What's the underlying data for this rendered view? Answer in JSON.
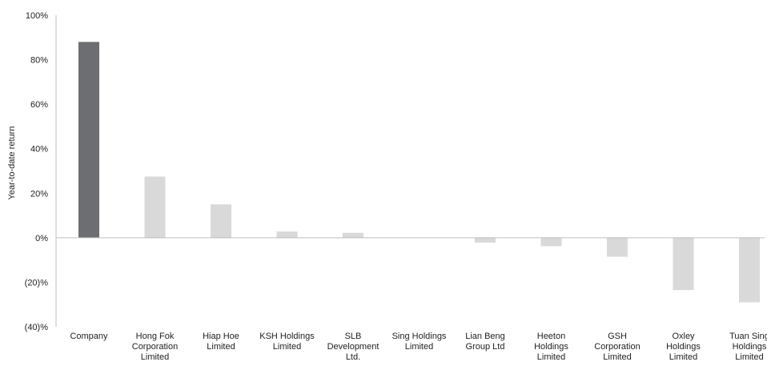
{
  "chart_data": {
    "type": "bar",
    "title": "",
    "xlabel": "",
    "ylabel": "Year-to-date return",
    "ylim": [
      -40,
      100
    ],
    "yticks": [
      100,
      80,
      60,
      40,
      20,
      0,
      -20,
      -40
    ],
    "ytick_labels": [
      "100%",
      "80%",
      "60%",
      "40%",
      "20%",
      "0%",
      "(20)%",
      "(40)%"
    ],
    "grid": false,
    "categories": [
      "Company",
      "Hong Fok Corporation Limited",
      "Hiap Hoe Limited",
      "KSH Holdings Limited",
      "SLB Development Ltd.",
      "Sing Holdings Limited",
      "Lian Beng Group Ltd",
      "Heeton Holdings Limited",
      "GSH Corporation Limited",
      "Oxley Holdings Limited",
      "Tuan Sing Holdings Limited"
    ],
    "category_lines": [
      [
        "Company"
      ],
      [
        "Hong Fok",
        "Corporation",
        "Limited"
      ],
      [
        "Hiap Hoe",
        "Limited"
      ],
      [
        "KSH Holdings",
        "Limited"
      ],
      [
        "SLB",
        "Development",
        "Ltd."
      ],
      [
        "Sing Holdings",
        "Limited"
      ],
      [
        "Lian Beng",
        "Group Ltd"
      ],
      [
        "Heeton",
        "Holdings",
        "Limited"
      ],
      [
        "GSH",
        "Corporation",
        "Limited"
      ],
      [
        "Oxley",
        "Holdings",
        "Limited"
      ],
      [
        "Tuan Sing",
        "Holdings",
        "Limited"
      ]
    ],
    "values": [
      88,
      27.5,
      15,
      2.8,
      2.2,
      0,
      -2.2,
      -3.8,
      -8.5,
      -23.5,
      -29
    ],
    "highlight_index": 0,
    "colors": {
      "highlight": "#6d6e71",
      "peer": "#d9d9d9",
      "axis": "#bfbfbf",
      "text": "#222222"
    }
  }
}
